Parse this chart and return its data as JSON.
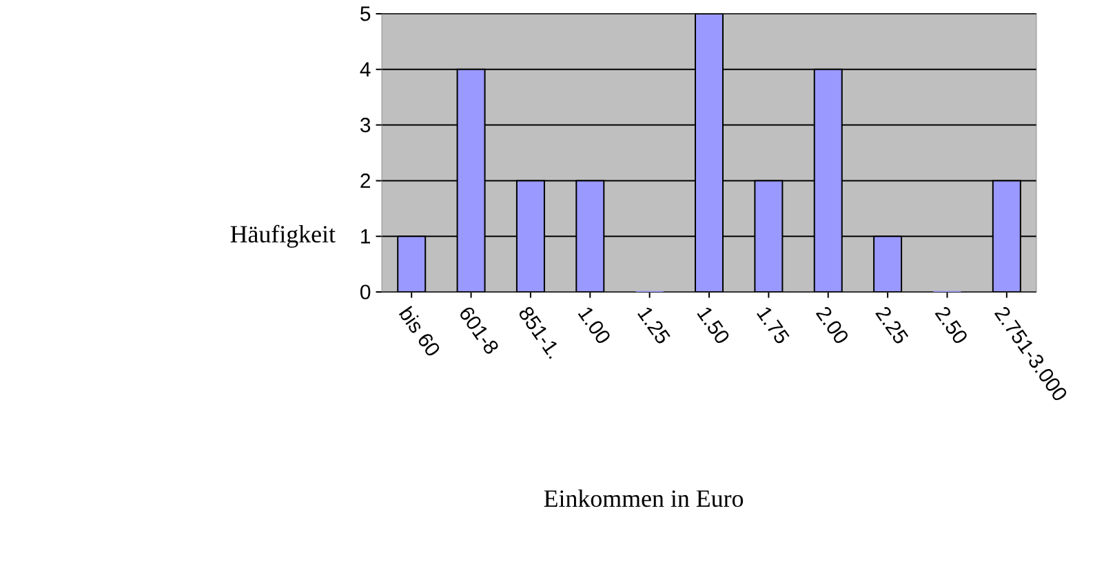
{
  "chart_data": {
    "type": "bar",
    "xlabel": "Einkommen in Euro",
    "ylabel": "Häufigkeit",
    "categories": [
      "bis 60",
      "601-8",
      "851-1.",
      "1.00",
      "1.25",
      "1.50",
      "1.75",
      "2.00",
      "2.25",
      "2.50",
      "2.751-3.000"
    ],
    "values": [
      1,
      4,
      2,
      2,
      0,
      5,
      2,
      4,
      1,
      0,
      2
    ],
    "color": "#9999ff",
    "ylim": [
      0,
      5
    ],
    "yticks": [
      0,
      1,
      2,
      3,
      4,
      5
    ],
    "grid": "y"
  }
}
